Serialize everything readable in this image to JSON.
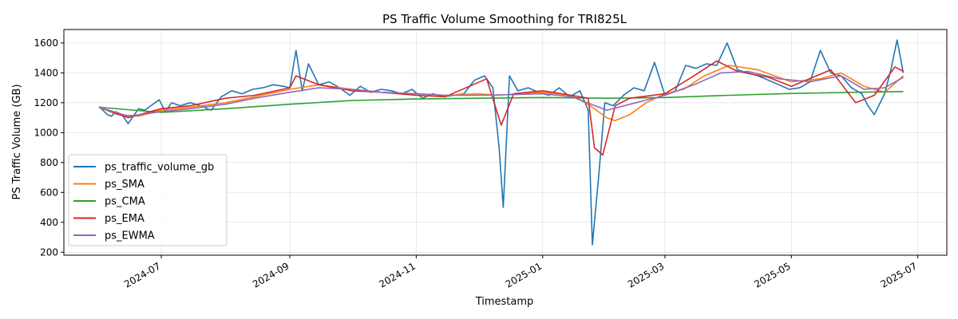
{
  "chart_data": {
    "type": "line",
    "title": "PS Traffic Volume Smoothing for TRI825L",
    "xlabel": "Timestamp",
    "ylabel": "PS Traffic Volume (GB)",
    "xlim": [
      "2024-05-15",
      "2025-07-15"
    ],
    "ylim": [
      180,
      1690
    ],
    "x_ticks": [
      "2024-07",
      "2024-09",
      "2024-11",
      "2025-01",
      "2025-03",
      "2025-05",
      "2025-07"
    ],
    "x_tick_dates": [
      "2024-07-01",
      "2024-09-01",
      "2024-11-01",
      "2025-01-01",
      "2025-03-01",
      "2025-05-01",
      "2025-07-01"
    ],
    "y_ticks": [
      200,
      400,
      600,
      800,
      1000,
      1200,
      1400,
      1600
    ],
    "grid": true,
    "legend_position": "lower-left",
    "series": [
      {
        "name": "ps_traffic_volume_gb",
        "color": "#1f77b4",
        "x": [
          "2024-06-01",
          "2024-06-05",
          "2024-06-07",
          "2024-06-09",
          "2024-06-12",
          "2024-06-15",
          "2024-06-17",
          "2024-06-20",
          "2024-06-23",
          "2024-06-26",
          "2024-06-30",
          "2024-07-03",
          "2024-07-06",
          "2024-07-10",
          "2024-07-15",
          "2024-07-20",
          "2024-07-25",
          "2024-07-30",
          "2024-08-04",
          "2024-08-09",
          "2024-08-14",
          "2024-08-19",
          "2024-08-24",
          "2024-08-29",
          "2024-09-01",
          "2024-09-04",
          "2024-09-07",
          "2024-09-10",
          "2024-09-15",
          "2024-09-20",
          "2024-09-25",
          "2024-09-30",
          "2024-10-05",
          "2024-10-10",
          "2024-10-15",
          "2024-10-20",
          "2024-10-25",
          "2024-10-30",
          "2024-11-04",
          "2024-11-09",
          "2024-11-14",
          "2024-11-19",
          "2024-11-24",
          "2024-11-29",
          "2024-12-04",
          "2024-12-08",
          "2024-12-11",
          "2024-12-13",
          "2024-12-16",
          "2024-12-20",
          "2024-12-25",
          "2024-12-30",
          "2025-01-04",
          "2025-01-09",
          "2025-01-14",
          "2025-01-19",
          "2025-01-23",
          "2025-01-25",
          "2025-01-28",
          "2025-01-31",
          "2025-02-04",
          "2025-02-09",
          "2025-02-14",
          "2025-02-19",
          "2025-02-24",
          "2025-03-01",
          "2025-03-06",
          "2025-03-11",
          "2025-03-16",
          "2025-03-21",
          "2025-03-26",
          "2025-03-31",
          "2025-04-05",
          "2025-04-10",
          "2025-04-15",
          "2025-04-20",
          "2025-04-25",
          "2025-04-30",
          "2025-05-05",
          "2025-05-10",
          "2025-05-15",
          "2025-05-20",
          "2025-05-25",
          "2025-05-30",
          "2025-06-04",
          "2025-06-07",
          "2025-06-10",
          "2025-06-15",
          "2025-06-18",
          "2025-06-21",
          "2025-06-24"
        ],
        "y": [
          1175,
          1120,
          1110,
          1140,
          1120,
          1060,
          1100,
          1160,
          1150,
          1180,
          1220,
          1140,
          1200,
          1180,
          1200,
          1180,
          1150,
          1240,
          1280,
          1260,
          1290,
          1300,
          1320,
          1310,
          1300,
          1550,
          1280,
          1460,
          1320,
          1340,
          1300,
          1250,
          1310,
          1270,
          1290,
          1280,
          1260,
          1290,
          1230,
          1260,
          1240,
          1250,
          1260,
          1350,
          1380,
          1300,
          900,
          500,
          1380,
          1280,
          1300,
          1270,
          1250,
          1300,
          1240,
          1280,
          1150,
          250,
          700,
          1200,
          1180,
          1250,
          1300,
          1280,
          1470,
          1250,
          1280,
          1450,
          1430,
          1460,
          1450,
          1600,
          1420,
          1400,
          1380,
          1350,
          1320,
          1290,
          1300,
          1340,
          1550,
          1400,
          1380,
          1300,
          1260,
          1180,
          1120,
          1260,
          1420,
          1620,
          1400
        ]
      },
      {
        "name": "ps_SMA",
        "color": "#ff7f0e",
        "x": [
          "2024-06-01",
          "2024-06-10",
          "2024-06-20",
          "2024-07-01",
          "2024-07-15",
          "2024-08-01",
          "2024-08-15",
          "2024-09-01",
          "2024-09-15",
          "2024-10-01",
          "2024-10-15",
          "2024-11-01",
          "2024-11-15",
          "2024-12-01",
          "2024-12-10",
          "2024-12-20",
          "2025-01-01",
          "2025-01-15",
          "2025-01-24",
          "2025-02-01",
          "2025-02-05",
          "2025-02-12",
          "2025-02-20",
          "2025-03-01",
          "2025-03-10",
          "2025-03-20",
          "2025-04-01",
          "2025-04-15",
          "2025-05-01",
          "2025-05-15",
          "2025-05-25",
          "2025-06-05",
          "2025-06-15",
          "2025-06-24"
        ],
        "y": [
          1170,
          1120,
          1110,
          1150,
          1170,
          1200,
          1240,
          1290,
          1320,
          1290,
          1270,
          1260,
          1250,
          1260,
          1250,
          1260,
          1270,
          1250,
          1180,
          1100,
          1080,
          1120,
          1200,
          1260,
          1290,
          1380,
          1450,
          1420,
          1340,
          1360,
          1400,
          1310,
          1270,
          1380
        ]
      },
      {
        "name": "ps_CMA",
        "color": "#2ca02c",
        "x": [
          "2024-06-01",
          "2024-07-01",
          "2024-08-01",
          "2024-09-01",
          "2024-10-01",
          "2024-11-01",
          "2024-12-01",
          "2025-01-01",
          "2025-02-01",
          "2025-03-01",
          "2025-04-01",
          "2025-05-01",
          "2025-06-01",
          "2025-06-24"
        ],
        "y": [
          1170,
          1135,
          1160,
          1190,
          1215,
          1225,
          1230,
          1235,
          1230,
          1235,
          1250,
          1262,
          1270,
          1275
        ]
      },
      {
        "name": "ps_EMA",
        "color": "#d62728",
        "x": [
          "2024-06-01",
          "2024-06-15",
          "2024-07-01",
          "2024-07-15",
          "2024-08-01",
          "2024-08-15",
          "2024-09-01",
          "2024-09-04",
          "2024-09-15",
          "2024-10-01",
          "2024-10-15",
          "2024-11-01",
          "2024-11-15",
          "2024-12-05",
          "2024-12-12",
          "2024-12-18",
          "2025-01-01",
          "2025-01-15",
          "2025-01-23",
          "2025-01-26",
          "2025-01-30",
          "2025-02-05",
          "2025-02-12",
          "2025-03-01",
          "2025-03-15",
          "2025-03-26",
          "2025-04-05",
          "2025-04-20",
          "2025-05-01",
          "2025-05-20",
          "2025-06-01",
          "2025-06-10",
          "2025-06-20",
          "2025-06-24"
        ],
        "y": [
          1170,
          1100,
          1160,
          1180,
          1230,
          1250,
          1300,
          1380,
          1320,
          1280,
          1270,
          1250,
          1240,
          1360,
          1050,
          1260,
          1280,
          1250,
          1230,
          900,
          850,
          1180,
          1230,
          1260,
          1380,
          1480,
          1410,
          1370,
          1310,
          1420,
          1200,
          1250,
          1440,
          1410
        ]
      },
      {
        "name": "ps_EWMA",
        "color": "#9467bd",
        "x": [
          "2024-06-01",
          "2024-06-15",
          "2024-07-01",
          "2024-07-15",
          "2024-08-01",
          "2024-08-15",
          "2024-09-01",
          "2024-09-15",
          "2024-10-01",
          "2024-10-15",
          "2024-11-01",
          "2024-11-15",
          "2024-12-01",
          "2024-12-20",
          "2025-01-01",
          "2025-01-15",
          "2025-02-01",
          "2025-02-15",
          "2025-03-01",
          "2025-03-15",
          "2025-03-28",
          "2025-04-10",
          "2025-04-25",
          "2025-05-10",
          "2025-05-25",
          "2025-06-05",
          "2025-06-15",
          "2025-06-24"
        ],
        "y": [
          1170,
          1110,
          1140,
          1160,
          1190,
          1230,
          1270,
          1300,
          1290,
          1270,
          1260,
          1250,
          1250,
          1255,
          1260,
          1240,
          1150,
          1200,
          1250,
          1320,
          1400,
          1410,
          1360,
          1340,
          1380,
          1290,
          1300,
          1370
        ]
      }
    ]
  }
}
